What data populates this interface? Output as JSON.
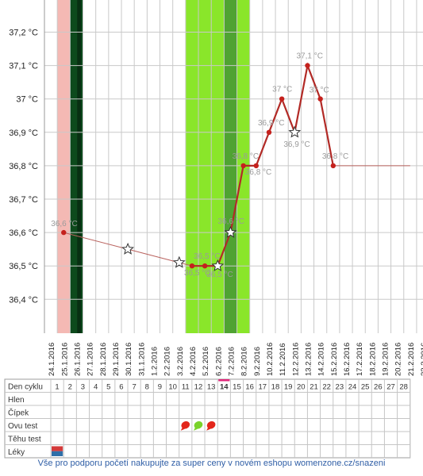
{
  "chart_data": {
    "type": "line",
    "y_ticks": [
      "37,2 °C",
      "37,1 °C",
      "37 °C",
      "36,9 °C",
      "36,8 °C",
      "36,7 °C",
      "36,6 °C",
      "36,5 °C",
      "36,4 °C"
    ],
    "y_tick_values": [
      37.2,
      37.1,
      37.0,
      36.9,
      36.8,
      36.7,
      36.6,
      36.5,
      36.4
    ],
    "ylim": [
      36.3,
      37.3
    ],
    "dates": [
      "24.1.2016",
      "25.1.2016",
      "26.1.2016",
      "27.1.2016",
      "28.1.2016",
      "29.1.2016",
      "30.1.2016",
      "31.1.2016",
      "1.2.2016",
      "2.2.2016",
      "3.2.2016",
      "4.2.2016",
      "5.2.2016",
      "6.2.2016",
      "7.2.2016",
      "8.2.2016",
      "9.2.2016",
      "10.2.2016",
      "11.2.2016",
      "12.2.2016",
      "13.2.2016",
      "14.2.2016",
      "15.2.2016",
      "16.2.2016",
      "17.2.2016",
      "18.2.2016",
      "19.2.2016",
      "20.2.2016",
      "21.2.2016",
      "22.2.2016"
    ],
    "grid": true,
    "bands": [
      {
        "from": "25.1.2016",
        "to": "25.1.2016",
        "color": "#f4b9b4"
      },
      {
        "from": "26.1.2016",
        "to": "26.1.2016",
        "color": "#0d4a1c"
      },
      {
        "from": "4.2.2016",
        "to": "8.2.2016",
        "color": "#8ae62a"
      },
      {
        "from": "7.2.2016",
        "to": "7.2.2016",
        "color": "#4fa332"
      }
    ],
    "series": [
      {
        "measured": [
          {
            "date": "25.1.2016",
            "value": 36.6,
            "label": "36,6 °C"
          },
          {
            "date": "4.2.2016",
            "value": 36.5,
            "label": "36,5 °C"
          },
          {
            "date": "5.2.2016",
            "value": 36.5,
            "label": "36,5 °C"
          },
          {
            "date": "6.2.2016",
            "value": 36.5,
            "label": "36,5 °C"
          },
          {
            "date": "7.2.2016",
            "value": 36.6,
            "label": "36,6 °C"
          },
          {
            "date": "8.2.2016",
            "value": 36.8,
            "label": "36,8 °C"
          },
          {
            "date": "9.2.2016",
            "value": 36.8,
            "label": "36,8 °C"
          },
          {
            "date": "10.2.2016",
            "value": 36.9,
            "label": "36,9 °C"
          },
          {
            "date": "11.2.2016",
            "value": 37.0,
            "label": "37 °C"
          },
          {
            "date": "12.2.2016",
            "value": 36.9,
            "label": "36,9 °C"
          },
          {
            "date": "13.2.2016",
            "value": 37.1,
            "label": "37,1 °C"
          },
          {
            "date": "14.2.2016",
            "value": 37.0,
            "label": "37 °C"
          },
          {
            "date": "15.2.2016",
            "value": 36.8,
            "label": "36,8 °C"
          }
        ],
        "interpolated_markers": [
          {
            "date": "30.1.2016",
            "value": 36.55
          },
          {
            "date": "3.2.2016",
            "value": 36.51
          }
        ],
        "star_markers": [
          "30.1.2016",
          "3.2.2016",
          "6.2.2016",
          "7.2.2016",
          "12.2.2016"
        ],
        "extension_until": "21.2.2016"
      }
    ]
  },
  "table": {
    "header_label": "Den cyklu",
    "rows": [
      "Hlen",
      "Čípek",
      "Ovu test",
      "Těhu test",
      "Léky"
    ],
    "cycle_days": [
      "1",
      "2",
      "3",
      "4",
      "5",
      "6",
      "7",
      "8",
      "9",
      "10",
      "11",
      "12",
      "13",
      "14",
      "15",
      "16",
      "17",
      "18",
      "19",
      "20",
      "21",
      "22",
      "23",
      "24",
      "25",
      "26",
      "27",
      "28"
    ],
    "highlighted_day": "14",
    "ovu_tests": [
      {
        "day": "11",
        "result": "positive",
        "color": "#e3261b"
      },
      {
        "day": "12",
        "result": "negative",
        "color": "#7ad22a"
      },
      {
        "day": "13",
        "result": "positive",
        "color": "#e3261b"
      }
    ],
    "medication_day": "1"
  },
  "footer": {
    "text": "Vše pro podporu početí nakupujte za super ceny v novém eshopu womenzone.cz/snazeni"
  }
}
